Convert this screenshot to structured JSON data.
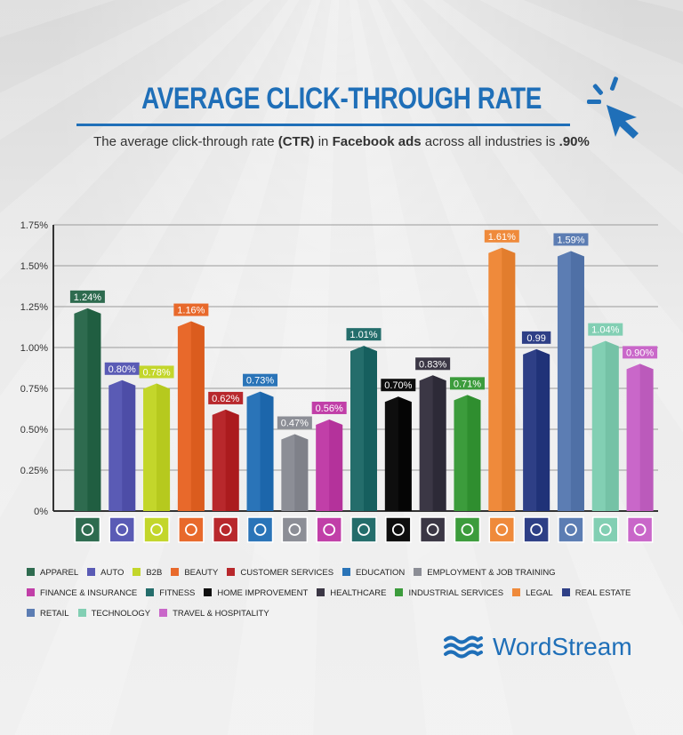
{
  "title": "AVERAGE CLICK-THROUGH RATE",
  "subtitle": {
    "p1": "The average click-through rate ",
    "b1": "(CTR)",
    "p2": " in ",
    "b2": "Facebook ads",
    "p3": " across all industries is ",
    "b3": ".90%"
  },
  "brand": {
    "name": "WordStream",
    "logo_icon": "wave-logo-icon"
  },
  "header_icon": "cursor-click-icon",
  "colors": {
    "title": "#1f6fb8",
    "axis": "#333333"
  },
  "chart_data": {
    "type": "bar",
    "title": "AVERAGE CLICK-THROUGH RATE",
    "ylim": [
      0,
      1.75
    ],
    "yticks": [
      0,
      0.25,
      0.5,
      0.75,
      1.0,
      1.25,
      1.5,
      1.75
    ],
    "ytick_labels": [
      "0%",
      "0.25%",
      "0.50%",
      "0.75%",
      "1.00%",
      "1.25%",
      "1.50%",
      "1.75%"
    ],
    "grid": true,
    "legend": "bottom",
    "categories": [
      "APPAREL",
      "AUTO",
      "B2B",
      "BEAUTY",
      "CUSTOMER SERVICES",
      "EDUCATION",
      "EMPLOYMENT & JOB TRAINING",
      "FINANCE & INSURANCE",
      "FITNESS",
      "HOME IMPROVEMENT",
      "HEALTHCARE",
      "INDUSTRIAL SERVICES",
      "LEGAL",
      "REAL ESTATE",
      "RETAIL",
      "TECHNOLOGY",
      "TRAVEL & HOSPITALITY"
    ],
    "values": [
      1.24,
      0.8,
      0.78,
      1.16,
      0.62,
      0.73,
      0.47,
      0.56,
      1.01,
      0.7,
      0.83,
      0.71,
      1.61,
      0.99,
      1.59,
      1.04,
      0.9
    ],
    "value_labels": [
      "1.24%",
      "0.80%",
      "0.78%",
      "1.16%",
      "0.62%",
      "0.73%",
      "0.47%",
      "0.56%",
      "1.01%",
      "0.70%",
      "0.83%",
      "0.71%",
      "1.61%",
      "0.99",
      "1.59%",
      "1.04%",
      "0.90%"
    ],
    "bar_colors": [
      "#2e6b4f",
      "#5a5bb5",
      "#c3d62b",
      "#e8692b",
      "#b8282c",
      "#2a74b8",
      "#8c8e96",
      "#c13fa8",
      "#246d6b",
      "#0e0e0e",
      "#3b3745",
      "#3c9c3c",
      "#ef8a3b",
      "#2e3f86",
      "#5c7db3",
      "#82cfb3",
      "#c967c9"
    ],
    "category_icons": [
      "tshirt-icon",
      "car-icon",
      "handshake-icon",
      "mirror-icon",
      "headset-icon",
      "book-icon",
      "briefcase-icon",
      "money-bag-icon",
      "flexed-arm-icon",
      "tools-icon",
      "medical-kit-icon",
      "factory-icon",
      "gavel-icon",
      "house-icon",
      "price-tag-icon",
      "laptop-icon",
      "map-pin-icon"
    ]
  }
}
